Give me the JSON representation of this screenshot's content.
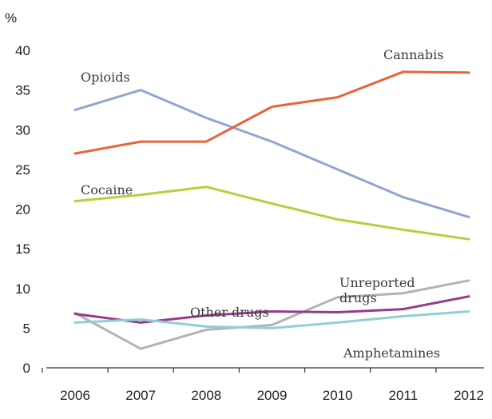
{
  "chart_data": {
    "type": "line",
    "title": "",
    "xlabel": "",
    "ylabel": "%",
    "x": [
      "2006",
      "2007",
      "2008",
      "2009",
      "2010",
      "2011",
      "2012"
    ],
    "ylim": [
      0,
      40
    ],
    "yticks": [
      "0",
      "5",
      "10",
      "15",
      "20",
      "25",
      "30",
      "35",
      "40"
    ],
    "grid": false,
    "legend": "direct labels",
    "series": [
      {
        "name": "Opioids",
        "color": "#8fa6cf",
        "values": [
          32.5,
          35.0,
          31.5,
          28.5,
          25.0,
          21.5,
          19.0
        ]
      },
      {
        "name": "Cannabis",
        "color": "#e8643c",
        "values": [
          27.0,
          28.5,
          28.5,
          32.9,
          34.1,
          37.3,
          37.2
        ]
      },
      {
        "name": "Cocaine",
        "color": "#b5cf3e",
        "values": [
          21.0,
          21.8,
          22.8,
          20.7,
          18.7,
          17.4,
          16.2
        ]
      },
      {
        "name": "Unreported drugs",
        "color": "#b3b3b3",
        "values": [
          6.9,
          2.4,
          4.8,
          5.4,
          8.9,
          9.4,
          11.0
        ]
      },
      {
        "name": "Other drugs",
        "color": "#963c8c",
        "values": [
          6.8,
          5.7,
          6.6,
          7.1,
          7.0,
          7.4,
          9.0
        ]
      },
      {
        "name": "Amphetamines",
        "color": "#91cfd6",
        "values": [
          5.7,
          6.1,
          5.2,
          5.0,
          5.7,
          6.5,
          7.1
        ]
      }
    ],
    "labels": [
      {
        "series": "Opioids",
        "text": "Opioids"
      },
      {
        "series": "Cannabis",
        "text": "Cannabis"
      },
      {
        "series": "Cocaine",
        "text": "Cocaine"
      },
      {
        "series": "Unreported drugs",
        "lines": [
          "Unreported",
          "drugs"
        ]
      },
      {
        "series": "Other drugs",
        "text": "Other drugs"
      },
      {
        "series": "Amphetamines",
        "text": "Amphetamines"
      }
    ]
  }
}
